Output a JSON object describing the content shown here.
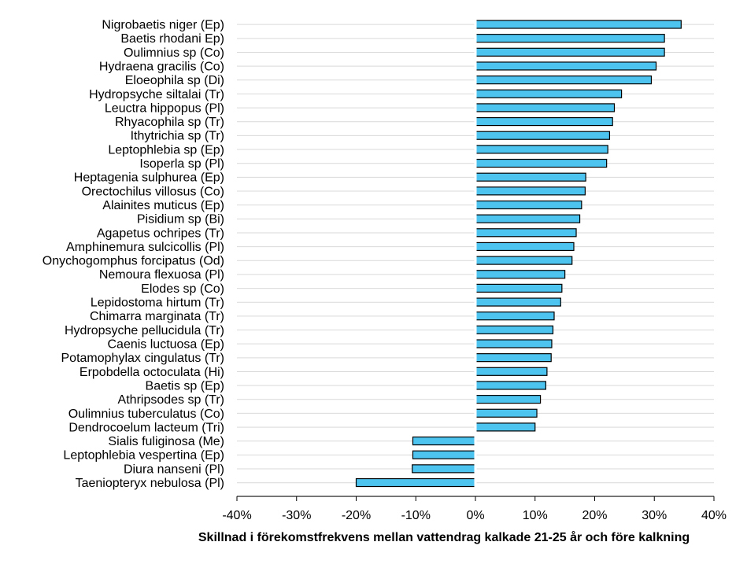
{
  "chart_data": {
    "type": "bar",
    "orientation": "horizontal",
    "title": "",
    "xlabel": "Skillnad i förekomstfrekvens mellan vattendrag kalkade 21-25 år och före kalkning",
    "ylabel": "",
    "xlim": [
      -40,
      40
    ],
    "x_ticks": [
      -40,
      -30,
      -20,
      -10,
      0,
      10,
      20,
      30,
      40
    ],
    "x_tick_labels": [
      "-40%",
      "-30%",
      "-20%",
      "-10%",
      "0%",
      "10%",
      "20%",
      "30%",
      "40%"
    ],
    "grid": "horizontal",
    "legend": "none",
    "bar_color": "#4DC3F0",
    "bar_edge_color": "#000000",
    "categories": [
      "Nigrobaetis niger (Ep)",
      "Baetis rhodani Ep)",
      "Oulimnius sp (Co)",
      "Hydraena gracilis (Co)",
      "Eloeophila sp (Di)",
      "Hydropsyche siltalai (Tr)",
      "Leuctra hippopus (Pl)",
      "Rhyacophila sp (Tr)",
      "Ithytrichia sp (Tr)",
      "Leptophlebia sp (Ep)",
      "Isoperla sp (Pl)",
      "Heptagenia sulphurea (Ep)",
      "Orectochilus villosus (Co)",
      "Alainites muticus (Ep)",
      "Pisidium sp (Bi)",
      "Agapetus ochripes (Tr)",
      "Amphinemura sulcicollis (Pl)",
      "Onychogomphus forcipatus (Od)",
      "Nemoura flexuosa (Pl)",
      "Elodes sp (Co)",
      "Lepidostoma hirtum (Tr)",
      "Chimarra marginata (Tr)",
      "Hydropsyche pellucidula (Tr)",
      "Caenis luctuosa (Ep)",
      "Potamophylax cingulatus (Tr)",
      "Erpobdella octoculata (Hi)",
      "Baetis sp (Ep)",
      "Athripsodes sp (Tr)",
      "Oulimnius tuberculatus (Co)",
      "Dendrocoelum lacteum (Tri)",
      "Sialis fuliginosa (Me)",
      "Leptophlebia vespertina (Ep)",
      "Diura nanseni (Pl)",
      "Taeniopteryx nebulosa (Pl)"
    ],
    "values": [
      34.5,
      31.7,
      31.7,
      30.3,
      29.5,
      24.5,
      23.3,
      23.0,
      22.5,
      22.2,
      22.0,
      18.5,
      18.4,
      17.8,
      17.5,
      16.9,
      16.5,
      16.2,
      15.0,
      14.5,
      14.3,
      13.2,
      13.0,
      12.8,
      12.7,
      12.0,
      11.8,
      10.9,
      10.3,
      10.0,
      -10.5,
      -10.5,
      -10.6,
      -20.0
    ]
  }
}
